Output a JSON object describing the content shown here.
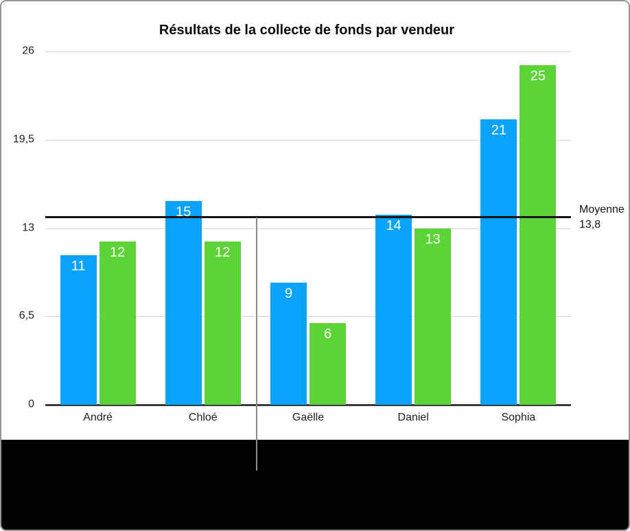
{
  "chart_data": {
    "type": "bar",
    "title": "Résultats de la collecte de fonds par vendeur",
    "categories": [
      "André",
      "Chloé",
      "Gaëlle",
      "Daniel",
      "Sophia"
    ],
    "series": [
      {
        "color_name": "blue",
        "hex": "#0aa2fa",
        "values": [
          11,
          15,
          9,
          14,
          21
        ]
      },
      {
        "color_name": "green",
        "hex": "#5cd337",
        "values": [
          12,
          12,
          6,
          13,
          25
        ]
      }
    ],
    "y_axis": {
      "min": 0,
      "max": 26,
      "ticks": [
        "26",
        "19,5",
        "13",
        "6,5",
        "0"
      ]
    },
    "xlabel": "",
    "ylabel": "",
    "grid": "horizontal",
    "legend": "none",
    "value_labels": "inside-top",
    "average_line": {
      "label": "Moyenne",
      "value_label": "13,8",
      "value": 13.8
    }
  },
  "colors": {
    "bar_blue": "#0aa2fa",
    "bar_green": "#5cd337",
    "gridline": "#d9d9d9",
    "axis_line": "#3a3a3c",
    "average_line": "#121212",
    "callout_line": "#8d8d8d",
    "footer_background": "#000000",
    "text": "#1d1d1f"
  }
}
